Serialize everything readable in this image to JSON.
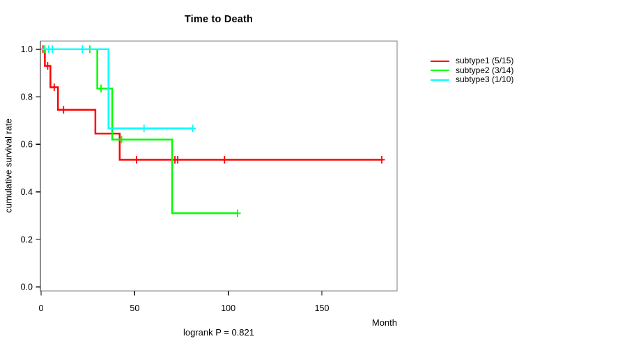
{
  "chart_data": {
    "type": "line",
    "chart_style": "kaplan-meier-step",
    "title": "Time to Death",
    "xlabel": "Month",
    "ylabel": "cumulative survival rate",
    "footnote": "logrank P = 0.821",
    "grid": false,
    "legend_position": "right-outside",
    "xlim": [
      0,
      190
    ],
    "ylim": [
      0,
      1.04
    ],
    "x_tick_values": [
      0,
      50,
      100,
      150
    ],
    "x_tick_labels": [
      "0",
      "50",
      "100",
      "150"
    ],
    "y_tick_values": [
      0.0,
      0.2,
      0.4,
      0.6,
      0.8,
      1.0
    ],
    "y_tick_labels": [
      "0.0",
      "0.2",
      "0.4",
      "0.6",
      "0.8",
      "1.0"
    ],
    "series": [
      {
        "name": "subtype1 (5/15)",
        "color": "#ff0000",
        "steps": [
          [
            0,
            1.0
          ],
          [
            2,
            1.0
          ],
          [
            2,
            0.93
          ],
          [
            5,
            0.93
          ],
          [
            5,
            0.84
          ],
          [
            9,
            0.84
          ],
          [
            9,
            0.745
          ],
          [
            29,
            0.745
          ],
          [
            29,
            0.645
          ],
          [
            42,
            0.645
          ],
          [
            42,
            0.535
          ],
          [
            182,
            0.535
          ]
        ],
        "censor_marks": [
          [
            1,
            1.0
          ],
          [
            3.5,
            0.93
          ],
          [
            7,
            0.84
          ],
          [
            12,
            0.745
          ],
          [
            51,
            0.535
          ],
          [
            71.5,
            0.535
          ],
          [
            73,
            0.535
          ],
          [
            98,
            0.535
          ],
          [
            182,
            0.535
          ]
        ]
      },
      {
        "name": "subtype2 (3/14)",
        "color": "#00ff00",
        "steps": [
          [
            0,
            1.0
          ],
          [
            30,
            1.0
          ],
          [
            30,
            0.835
          ],
          [
            38,
            0.835
          ],
          [
            38,
            0.62
          ],
          [
            70,
            0.62
          ],
          [
            70,
            0.31
          ],
          [
            105,
            0.31
          ]
        ],
        "censor_marks": [
          [
            2,
            1.0
          ],
          [
            26,
            1.0
          ],
          [
            32,
            0.835
          ],
          [
            43,
            0.62
          ],
          [
            105,
            0.31
          ]
        ]
      },
      {
        "name": "subtype3 (1/10)",
        "color": "#00ffff",
        "steps": [
          [
            0,
            1.0
          ],
          [
            36,
            1.0
          ],
          [
            36,
            0.667
          ],
          [
            81,
            0.667
          ]
        ],
        "censor_marks": [
          [
            4,
            1.0
          ],
          [
            6,
            1.0
          ],
          [
            22,
            1.0
          ],
          [
            55,
            0.667
          ],
          [
            81,
            0.667
          ]
        ]
      }
    ]
  }
}
